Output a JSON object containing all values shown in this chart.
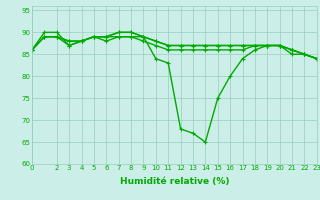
{
  "xlabel": "Humidité relative (%)",
  "xlim": [
    0,
    23
  ],
  "ylim": [
    60,
    96
  ],
  "yticks": [
    60,
    65,
    70,
    75,
    80,
    85,
    90,
    95
  ],
  "xticks": [
    0,
    2,
    3,
    4,
    5,
    6,
    7,
    8,
    9,
    10,
    11,
    12,
    13,
    14,
    15,
    16,
    17,
    18,
    19,
    20,
    21,
    22,
    23
  ],
  "bg_color": "#cceee8",
  "grid_color": "#99ccbb",
  "line_color": "#00aa00",
  "line_width": 1.0,
  "marker": "+",
  "marker_size": 3.5,
  "marker_edge_width": 0.8,
  "series": [
    [
      86,
      89,
      89,
      87,
      88,
      89,
      88,
      89,
      89,
      89,
      84,
      83,
      68,
      67,
      65,
      75,
      80,
      84,
      86,
      87,
      87,
      85,
      85,
      84
    ],
    [
      86,
      89,
      89,
      88,
      88,
      89,
      89,
      89,
      89,
      88,
      87,
      86,
      86,
      86,
      86,
      86,
      86,
      86,
      87,
      87,
      87,
      86,
      85,
      84
    ],
    [
      86,
      89,
      89,
      88,
      88,
      89,
      89,
      90,
      90,
      89,
      88,
      87,
      87,
      87,
      87,
      87,
      87,
      87,
      87,
      87,
      87,
      86,
      85,
      84
    ],
    [
      86,
      90,
      90,
      87,
      88,
      89,
      89,
      90,
      90,
      89,
      88,
      87,
      87,
      87,
      87,
      87,
      87,
      87,
      87,
      87,
      87,
      86,
      85,
      84
    ]
  ],
  "tick_fontsize": 5.0,
  "xlabel_fontsize": 6.5,
  "xlabel_fontweight": "bold"
}
